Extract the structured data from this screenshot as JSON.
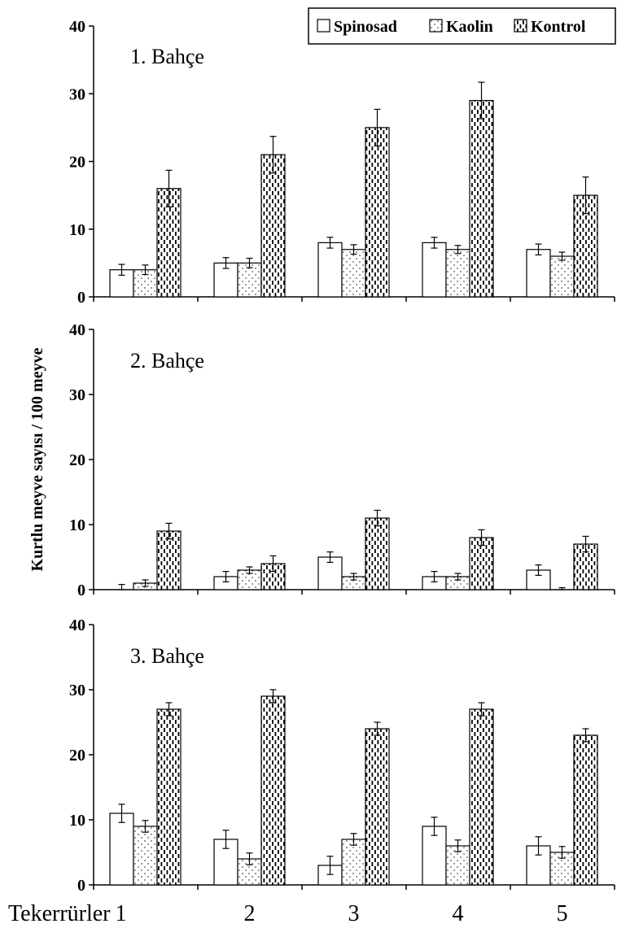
{
  "chart_data": {
    "type": "bar",
    "ylabel": "Kurtlu meyve sayısı / 100 meyve",
    "xlabel": "Tekerrürler",
    "categories": [
      "1",
      "2",
      "3",
      "4",
      "5"
    ],
    "ylim": [
      0,
      40
    ],
    "yticks": [
      0,
      10,
      20,
      30,
      40
    ],
    "legend": {
      "position": "top-right",
      "entries": [
        "Spinosad",
        "Kaolin",
        "Kontrol"
      ]
    },
    "patterns": {
      "Spinosad": "white",
      "Kaolin": "dotted",
      "Kontrol": "dashed"
    },
    "panels": [
      {
        "title": "1. Bahçe",
        "series": [
          {
            "name": "Spinosad",
            "values": [
              4,
              5,
              8,
              8,
              7
            ],
            "errors": [
              0.8,
              0.8,
              0.8,
              0.8,
              0.8
            ]
          },
          {
            "name": "Kaolin",
            "values": [
              4,
              5,
              7,
              7,
              6
            ],
            "errors": [
              0.7,
              0.7,
              0.7,
              0.6,
              0.6
            ]
          },
          {
            "name": "Kontrol",
            "values": [
              16,
              21,
              25,
              29,
              15
            ],
            "errors": [
              2.7,
              2.7,
              2.7,
              2.7,
              2.7
            ]
          }
        ]
      },
      {
        "title": "2. Bahçe",
        "series": [
          {
            "name": "Spinosad",
            "values": [
              0,
              2,
              5,
              2,
              3
            ],
            "errors": [
              0.8,
              0.8,
              0.8,
              0.8,
              0.8
            ]
          },
          {
            "name": "Kaolin",
            "values": [
              1,
              3,
              2,
              2,
              0
            ],
            "errors": [
              0.5,
              0.5,
              0.5,
              0.5,
              0.3
            ]
          },
          {
            "name": "Kontrol",
            "values": [
              9,
              4,
              11,
              8,
              7
            ],
            "errors": [
              1.2,
              1.2,
              1.2,
              1.2,
              1.2
            ]
          }
        ]
      },
      {
        "title": "3. Bahçe",
        "series": [
          {
            "name": "Spinosad",
            "values": [
              11,
              7,
              3,
              9,
              6
            ],
            "errors": [
              1.4,
              1.4,
              1.4,
              1.4,
              1.4
            ]
          },
          {
            "name": "Kaolin",
            "values": [
              9,
              4,
              7,
              6,
              5
            ],
            "errors": [
              0.9,
              0.9,
              0.9,
              0.9,
              0.9
            ]
          },
          {
            "name": "Kontrol",
            "values": [
              27,
              29,
              24,
              27,
              23
            ],
            "errors": [
              1.0,
              1.0,
              1.0,
              1.0,
              1.0
            ]
          }
        ]
      }
    ]
  }
}
